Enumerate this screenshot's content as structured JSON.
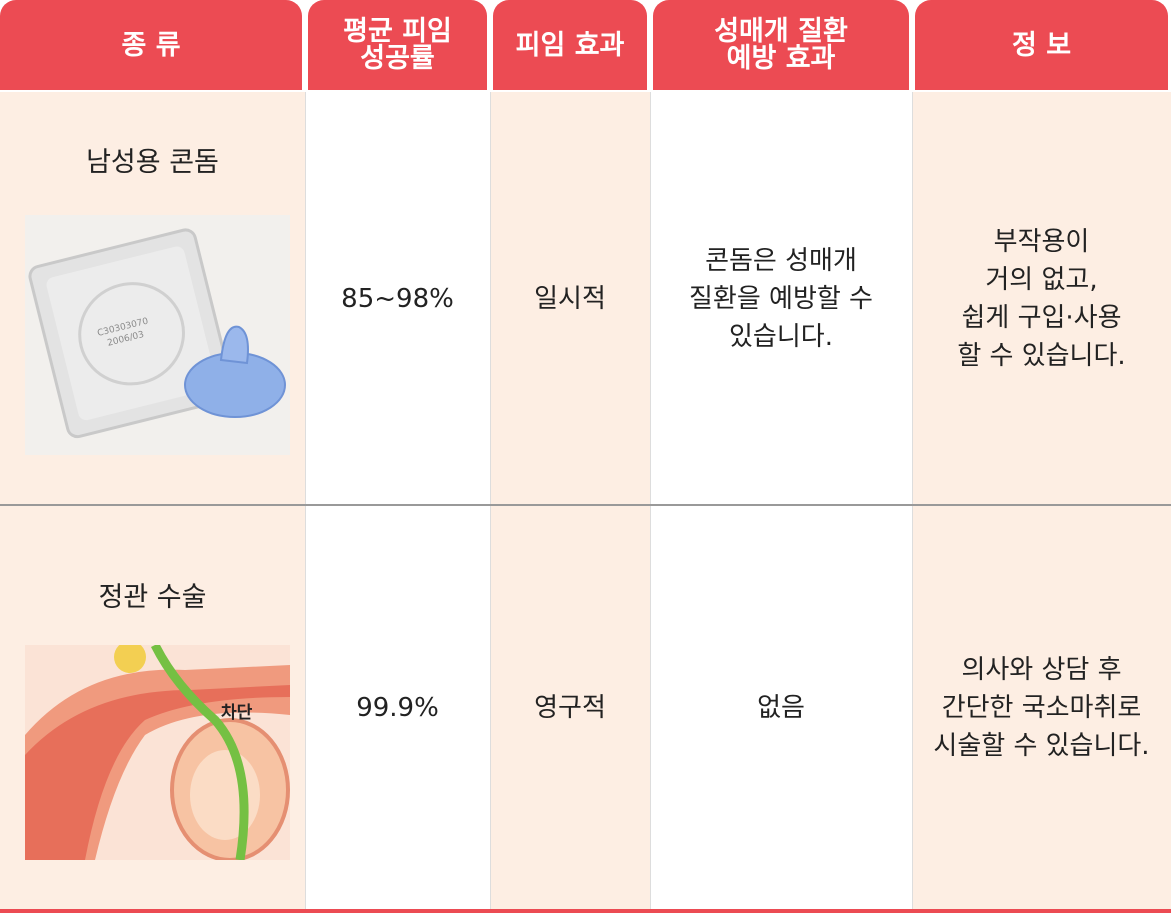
{
  "table": {
    "headers": [
      [
        "종 류"
      ],
      [
        "평균 피임",
        "성공률"
      ],
      [
        "피임 효과"
      ],
      [
        "성매개 질환",
        "예방 효과"
      ],
      [
        "정 보"
      ]
    ],
    "rows": [
      {
        "type": "남성용 콘돔",
        "rate": "85~98%",
        "effect": "일시적",
        "std": [
          "콘돔은 성매개",
          "질환을 예방할 수",
          "있습니다."
        ],
        "info": [
          "부작용이",
          "거의 없고,",
          "쉽게 구입·사용",
          "할 수 있습니다."
        ],
        "image_text": [
          "C30303070",
          "2006/03"
        ]
      },
      {
        "type": "정관 수술",
        "rate": "99.9%",
        "effect": "영구적",
        "std": [
          "없음"
        ],
        "info": [
          "의사와 상담 후",
          "간단한 국소마취로",
          "시술할 수 있습니다."
        ],
        "image_text": [
          "차단"
        ]
      }
    ]
  }
}
